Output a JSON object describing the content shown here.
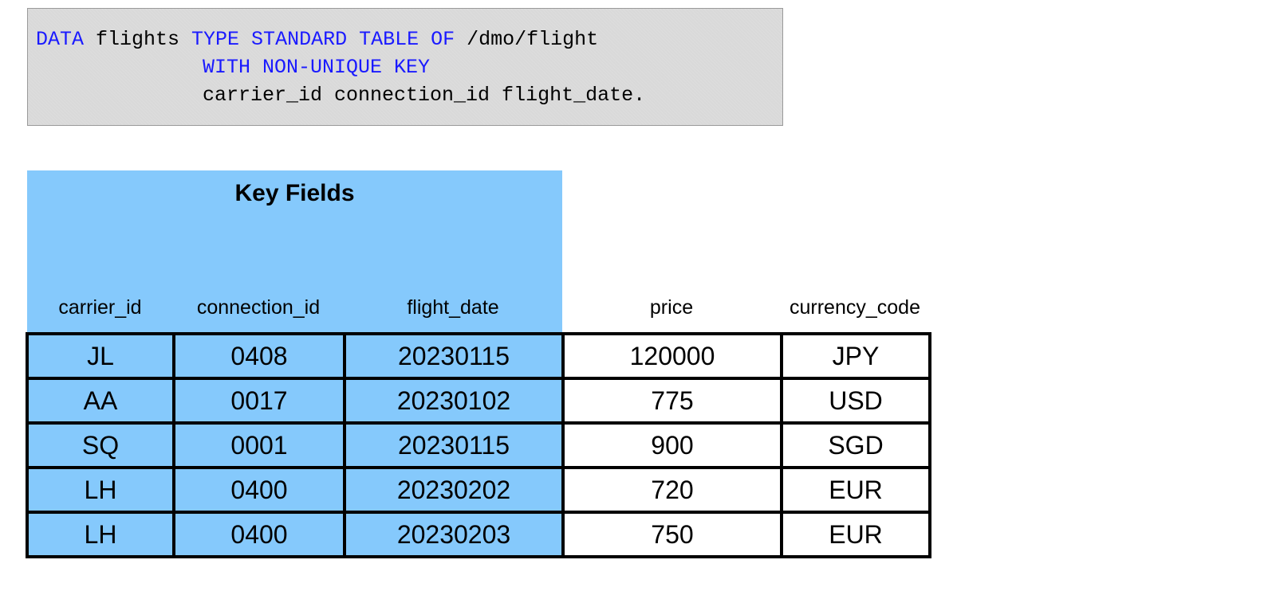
{
  "code": {
    "line1": {
      "kw1": "DATA",
      "t1": " flights ",
      "kw2": "TYPE STANDARD TABLE OF",
      "t2": " /dmo/flight"
    },
    "line2": {
      "kw": "WITH NON-UNIQUE KEY"
    },
    "line3": {
      "text": "carrier_id connection_id flight_date."
    }
  },
  "key_section": {
    "title": "Key Fields"
  },
  "columns": [
    "carrier_id",
    "connection_id",
    "flight_date",
    "price",
    "currency_code"
  ],
  "rows": [
    [
      "JL",
      "0408",
      "20230115",
      "120000",
      "JPY"
    ],
    [
      "AA",
      "0017",
      "20230102",
      "775",
      "USD"
    ],
    [
      "SQ",
      "0001",
      "20230115",
      "900",
      "SGD"
    ],
    [
      "LH",
      "0400",
      "20230202",
      "720",
      "EUR"
    ],
    [
      "LH",
      "0400",
      "20230203",
      "750",
      "EUR"
    ]
  ],
  "colors": {
    "key_field_bg": "#85c9fc",
    "keyword": "#1a1aff",
    "code_bg": "#d9d9d9"
  }
}
